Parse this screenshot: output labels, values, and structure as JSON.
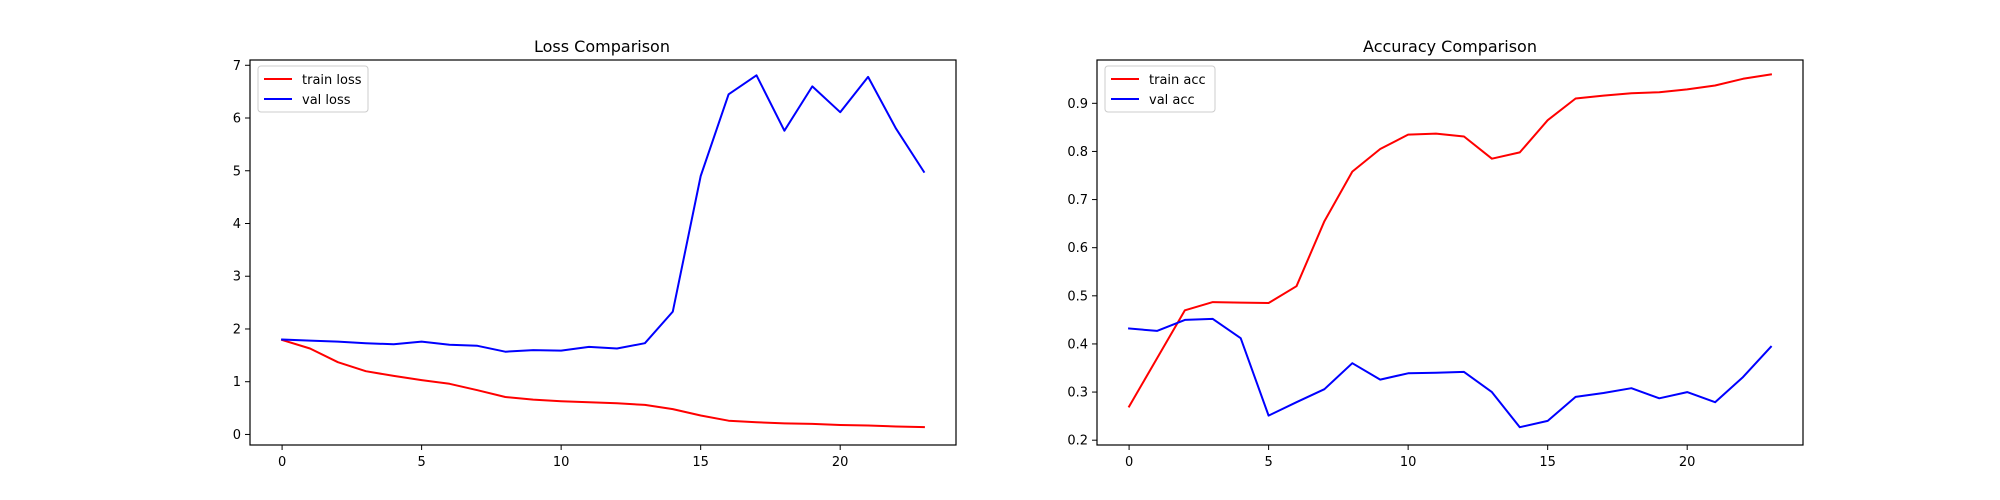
{
  "chart_data": [
    {
      "type": "line",
      "title": "Loss Comparison",
      "xlabel": "",
      "ylabel": "",
      "xlim": [
        -1.15,
        24.15
      ],
      "ylim": [
        -0.2,
        7.1
      ],
      "xticks": [
        0,
        5,
        10,
        15,
        20
      ],
      "yticks": [
        0,
        1,
        2,
        3,
        4,
        5,
        6,
        7
      ],
      "grid": false,
      "legend": "top-left",
      "x": [
        0,
        1,
        2,
        3,
        4,
        5,
        6,
        7,
        8,
        9,
        10,
        11,
        12,
        13,
        14,
        15,
        16,
        17,
        18,
        19,
        20,
        21,
        22,
        23
      ],
      "series": [
        {
          "name": "train loss",
          "color": "#ff0000",
          "values": [
            1.79,
            1.63,
            1.37,
            1.2,
            1.11,
            1.03,
            0.96,
            0.84,
            0.71,
            0.66,
            0.63,
            0.61,
            0.59,
            0.56,
            0.48,
            0.36,
            0.26,
            0.23,
            0.21,
            0.2,
            0.18,
            0.17,
            0.15,
            0.14
          ]
        },
        {
          "name": "val loss",
          "color": "#0000ff",
          "values": [
            1.8,
            1.78,
            1.76,
            1.73,
            1.71,
            1.76,
            1.7,
            1.68,
            1.57,
            1.6,
            1.59,
            1.66,
            1.63,
            1.73,
            2.33,
            4.9,
            6.45,
            6.81,
            5.76,
            6.6,
            6.11,
            6.78,
            5.8,
            4.98
          ]
        }
      ]
    },
    {
      "type": "line",
      "title": "Accuracy Comparison",
      "xlabel": "",
      "ylabel": "",
      "xlim": [
        -1.15,
        24.15
      ],
      "ylim": [
        0.19,
        0.99
      ],
      "xticks": [
        0,
        5,
        10,
        15,
        20
      ],
      "yticks": [
        0.2,
        0.3,
        0.4,
        0.5,
        0.6,
        0.7,
        0.8,
        0.9
      ],
      "grid": false,
      "legend": "top-left",
      "x": [
        0,
        1,
        2,
        3,
        4,
        5,
        6,
        7,
        8,
        9,
        10,
        11,
        12,
        13,
        14,
        15,
        16,
        17,
        18,
        19,
        20,
        21,
        22,
        23
      ],
      "series": [
        {
          "name": "train acc",
          "color": "#ff0000",
          "values": [
            0.27,
            0.37,
            0.47,
            0.487,
            0.486,
            0.485,
            0.52,
            0.655,
            0.758,
            0.805,
            0.835,
            0.837,
            0.831,
            0.785,
            0.798,
            0.865,
            0.91,
            0.916,
            0.921,
            0.923,
            0.929,
            0.937,
            0.951,
            0.96
          ]
        },
        {
          "name": "val acc",
          "color": "#0000ff",
          "values": [
            0.432,
            0.427,
            0.45,
            0.452,
            0.412,
            0.251,
            0.279,
            0.306,
            0.36,
            0.326,
            0.339,
            0.34,
            0.342,
            0.3,
            0.227,
            0.24,
            0.29,
            0.298,
            0.308,
            0.287,
            0.3,
            0.279,
            0.331,
            0.394
          ]
        }
      ]
    }
  ]
}
